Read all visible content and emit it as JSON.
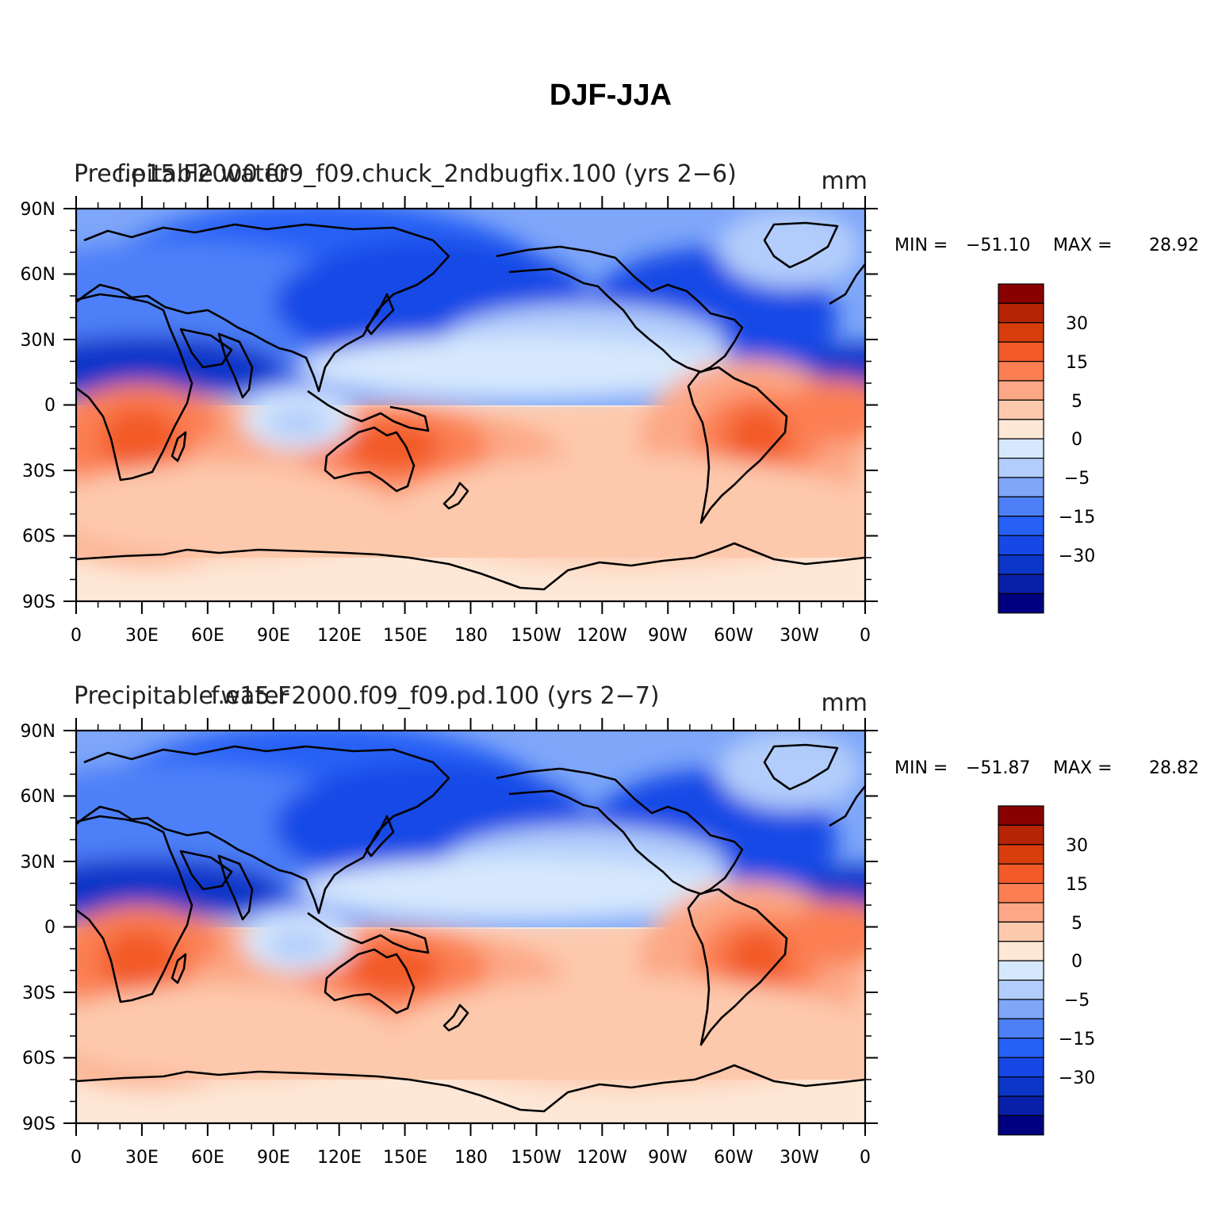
{
  "figure": {
    "title": "DJF-JJA",
    "colors": {
      "levels": [
        "#000080",
        "#0a1fa8",
        "#0b36c8",
        "#1748e6",
        "#2660f5",
        "#4d80f8",
        "#7ea6f9",
        "#b2cdfb",
        "#d6e8fd",
        "#fde7d6",
        "#fdc9ad",
        "#fca785",
        "#fb7f52",
        "#f25a28",
        "#d83d0c",
        "#b52405",
        "#890000"
      ],
      "coast": "#000000",
      "frame": "#000000"
    },
    "colorbar_labels": [
      "30",
      "15",
      "5",
      "0",
      "−5",
      "−15",
      "−30"
    ],
    "panels": [
      {
        "case_title": "f.e15.F2000.f09_f09.chuck_2ndbugfix.100 (yrs 2−6)",
        "variable": "Precipitable water",
        "units": "mm",
        "min_label": "MIN =",
        "min_value": "−51.10",
        "max_label": "MAX =",
        "max_value": "28.92"
      },
      {
        "case_title": "f.e15.F2000.f09_f09.pd.100 (yrs 2−7)",
        "variable": "Precipitable water",
        "units": "mm",
        "min_label": "MIN =",
        "min_value": "−51.87",
        "max_label": "MAX =",
        "max_value": "28.82"
      }
    ],
    "lat_ticks": [
      "90N",
      "60N",
      "30N",
      "0",
      "30S",
      "60S",
      "90S"
    ],
    "lon_ticks": [
      "0",
      "30E",
      "60E",
      "90E",
      "120E",
      "150E",
      "180",
      "150W",
      "120W",
      "90W",
      "60W",
      "30W",
      "0"
    ]
  }
}
